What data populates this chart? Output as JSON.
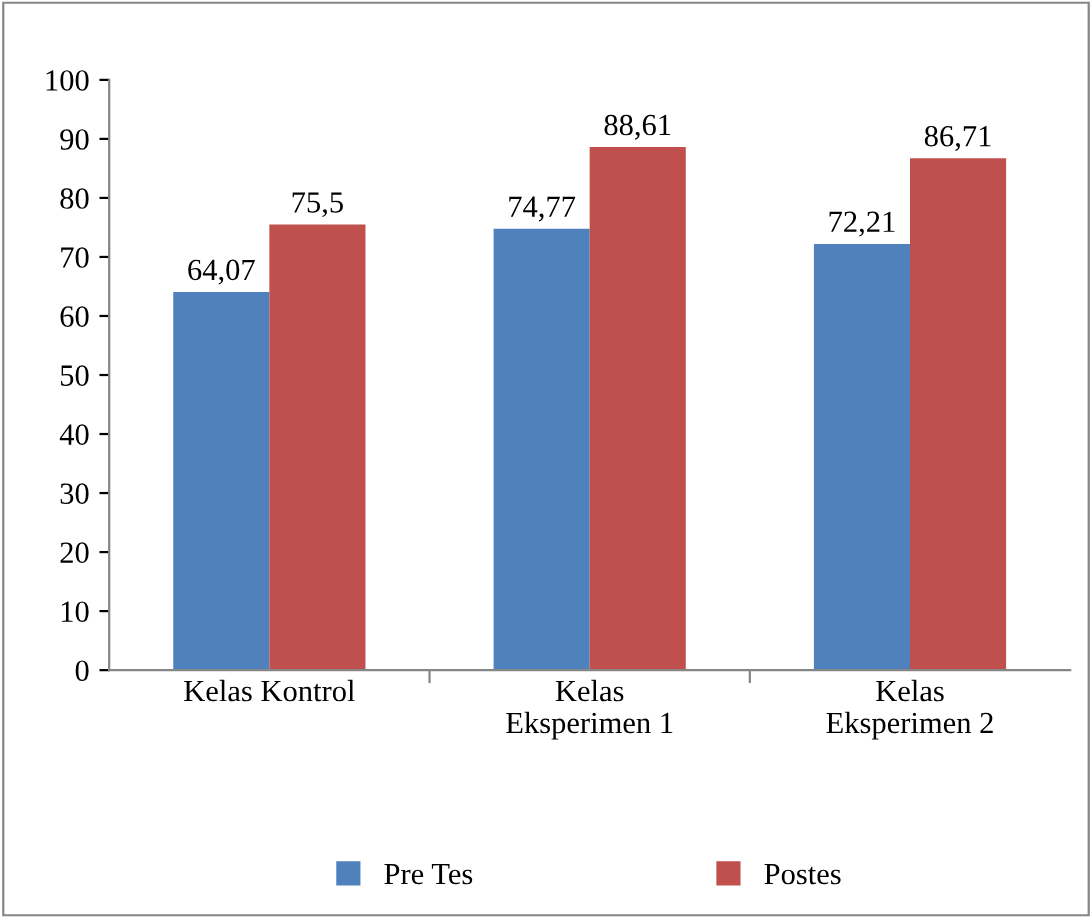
{
  "chart_data": {
    "type": "bar",
    "categories": [
      "Kelas Kontrol",
      "Kelas\nEksperimen 1",
      "Kelas\nEksperimen 2"
    ],
    "series": [
      {
        "name": "Pre Tes",
        "color": "#4f81bd",
        "values": [
          64.07,
          74.77,
          72.21
        ],
        "value_labels": [
          "64,07",
          "74,77",
          "72,21"
        ]
      },
      {
        "name": "Postes",
        "color": "#c0504d",
        "values": [
          75.5,
          88.61,
          86.71
        ],
        "value_labels": [
          "75,5",
          "88,61",
          "86,71"
        ]
      }
    ],
    "ylim": [
      0,
      100
    ],
    "yticks": [
      0,
      10,
      20,
      30,
      40,
      50,
      60,
      70,
      80,
      90,
      100
    ],
    "grid": false,
    "legend": "bottom"
  }
}
